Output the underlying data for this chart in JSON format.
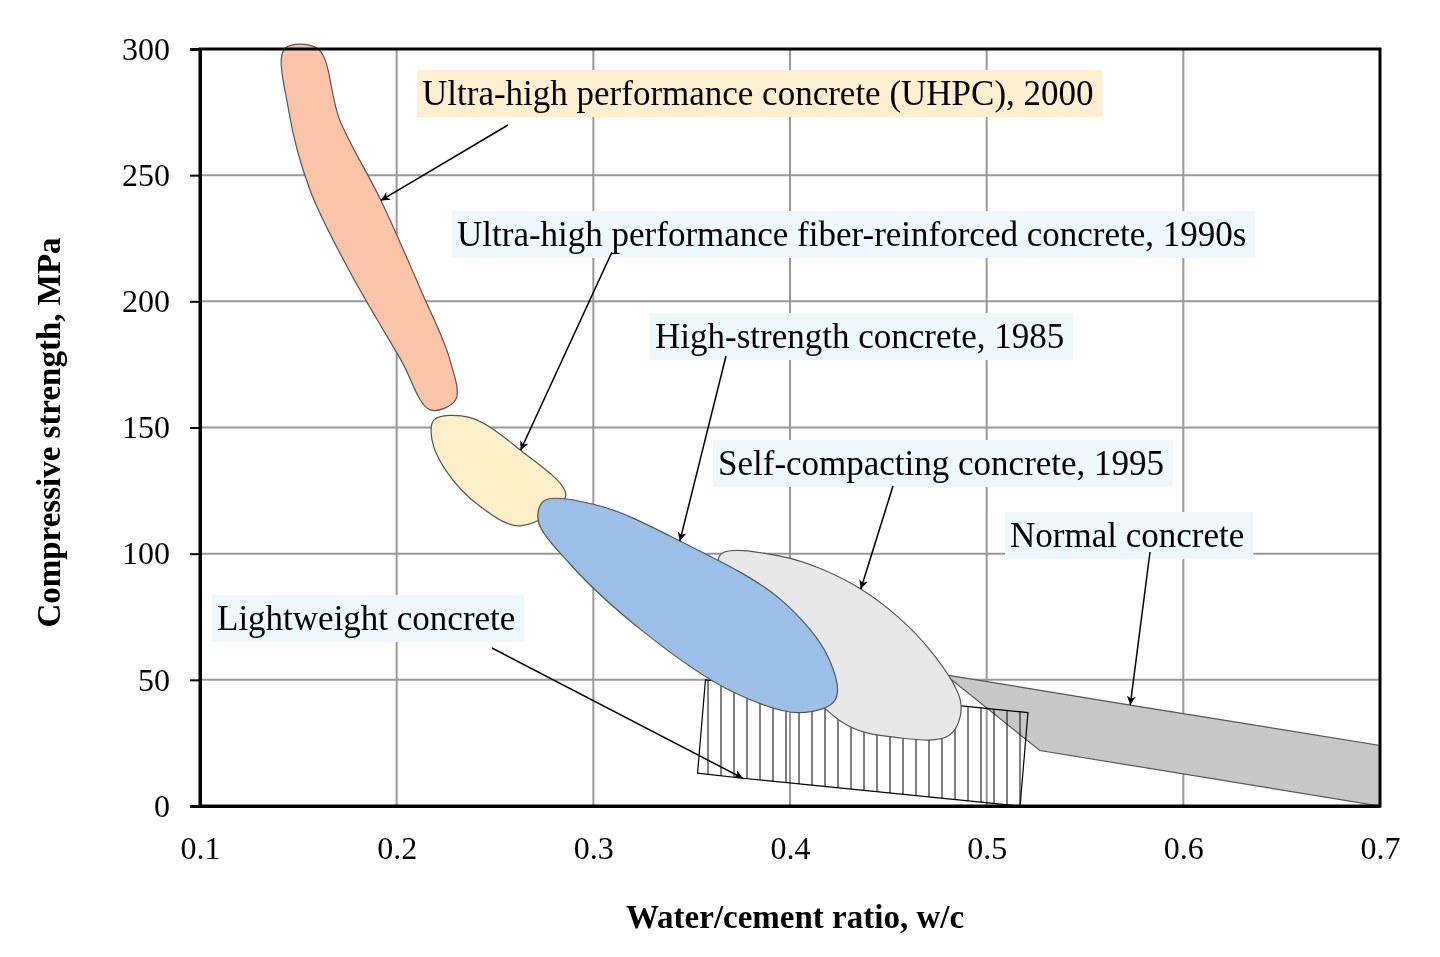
{
  "chart_data": {
    "type": "area",
    "xlabel": "Water/cement ratio, w/c",
    "ylabel": "Compressive strength, MPa",
    "xlim": [
      0.1,
      0.7
    ],
    "xticks": [
      0.1,
      0.2,
      0.3,
      0.4,
      0.5,
      0.6,
      0.7
    ],
    "ylim": [
      0,
      300
    ],
    "yticks": [
      0,
      50,
      100,
      150,
      200,
      250,
      300
    ],
    "grid": true,
    "series": [
      {
        "color": "#c8c8c8",
        "x": [
          0.479,
          0.573,
          0.7,
          0.7,
          0.527
        ],
        "values": [
          52,
          40,
          24,
          0,
          22
        ]
      },
      {
        "color": "#000000",
        "x": [
          0.357,
          0.521,
          0.517,
          0.376,
          0.353
        ],
        "values": [
          50,
          37,
          0,
          11,
          13
        ]
      },
      {
        "color": "#e8e8e8",
        "x": [
          0.364,
          0.395,
          0.436,
          0.471,
          0.487,
          0.481,
          0.456,
          0.425
        ],
        "values": [
          99,
          99,
          86,
          62,
          40,
          28,
          27,
          34
        ]
      },
      {
        "color": "#f9c4a8",
        "x": [
          0.143,
          0.16,
          0.171,
          0.192,
          0.212,
          0.227,
          0.23,
          0.217,
          0.202,
          0.176,
          0.156,
          0.145
        ],
        "values": [
          300,
          300,
          272,
          240,
          205,
          177,
          161,
          157,
          177,
          212,
          244,
          276
        ]
      },
      {
        "color": "#fdf0c8",
        "x": [
          0.219,
          0.237,
          0.263,
          0.286,
          0.263,
          0.242,
          0.225,
          0.218
        ],
        "values": [
          153,
          154,
          141,
          123,
          111,
          119,
          133,
          145
        ]
      },
      {
        "color": "#9bbfe6",
        "x": [
          0.275,
          0.303,
          0.344,
          0.395,
          0.42,
          0.423,
          0.405,
          0.369,
          0.324,
          0.288,
          0.272
        ],
        "values": [
          121,
          119,
          105,
          82,
          58,
          42,
          37,
          46,
          70,
          96,
          113
        ]
      }
    ],
    "annotations": [
      {
        "text": "Ultra-high performance concrete (UHPC), 2000",
        "x": 0.192,
        "y": 240
      },
      {
        "text": "Ultra-high performance fiber-reinforced concrete, 1990s",
        "x": 0.263,
        "y": 141
      },
      {
        "text": "High-strength concrete, 1985",
        "x": 0.344,
        "y": 105
      },
      {
        "text": "Self-compacting concrete, 1995",
        "x": 0.436,
        "y": 86
      },
      {
        "text": "Normal concrete",
        "x": 0.573,
        "y": 40
      },
      {
        "text": "Lightweight concrete",
        "x": 0.376,
        "y": 11
      }
    ]
  }
}
